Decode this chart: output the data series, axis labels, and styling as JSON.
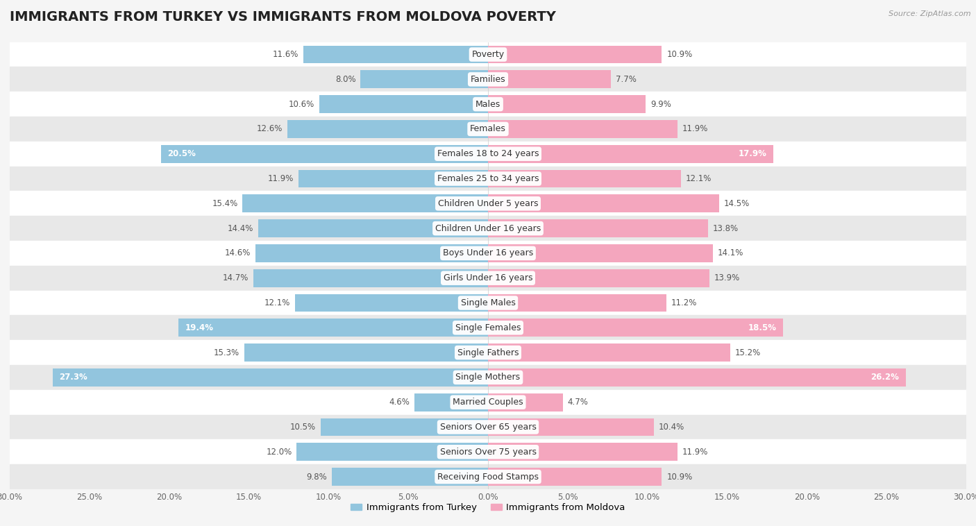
{
  "title": "IMMIGRANTS FROM TURKEY VS IMMIGRANTS FROM MOLDOVA POVERTY",
  "source": "Source: ZipAtlas.com",
  "categories": [
    "Poverty",
    "Families",
    "Males",
    "Females",
    "Females 18 to 24 years",
    "Females 25 to 34 years",
    "Children Under 5 years",
    "Children Under 16 years",
    "Boys Under 16 years",
    "Girls Under 16 years",
    "Single Males",
    "Single Females",
    "Single Fathers",
    "Single Mothers",
    "Married Couples",
    "Seniors Over 65 years",
    "Seniors Over 75 years",
    "Receiving Food Stamps"
  ],
  "turkey_values": [
    11.6,
    8.0,
    10.6,
    12.6,
    20.5,
    11.9,
    15.4,
    14.4,
    14.6,
    14.7,
    12.1,
    19.4,
    15.3,
    27.3,
    4.6,
    10.5,
    12.0,
    9.8
  ],
  "moldova_values": [
    10.9,
    7.7,
    9.9,
    11.9,
    17.9,
    12.1,
    14.5,
    13.8,
    14.1,
    13.9,
    11.2,
    18.5,
    15.2,
    26.2,
    4.7,
    10.4,
    11.9,
    10.9
  ],
  "turkey_color": "#92c5de",
  "moldova_color": "#f4a6be",
  "turkey_label": "Immigrants from Turkey",
  "moldova_label": "Immigrants from Moldova",
  "xlim": 30.0,
  "bg_color": "#f5f5f5",
  "row_light": "#ffffff",
  "row_dark": "#e8e8e8",
  "bar_height": 0.72,
  "title_fontsize": 14,
  "label_fontsize": 9,
  "value_fontsize": 8.5,
  "axis_fontsize": 8.5,
  "white_text_threshold_turkey": 18.0,
  "white_text_threshold_moldova": 17.0
}
